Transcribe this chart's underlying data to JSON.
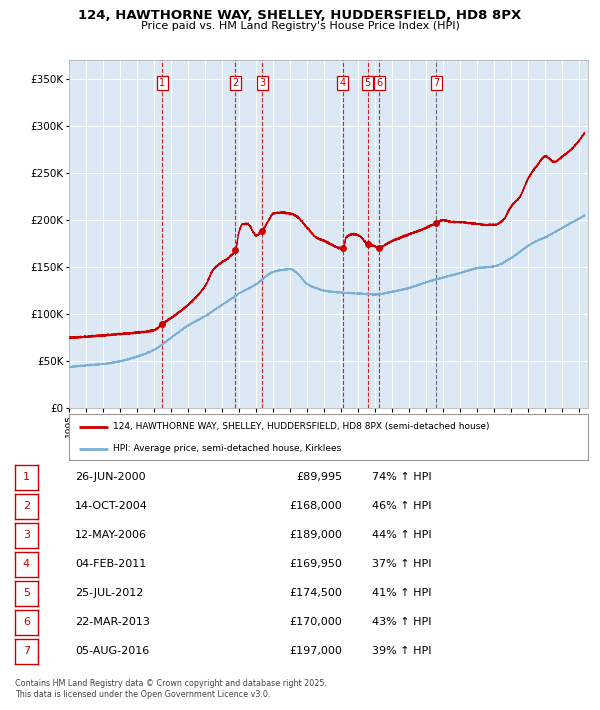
{
  "title": "124, HAWTHORNE WAY, SHELLEY, HUDDERSFIELD, HD8 8PX",
  "subtitle": "Price paid vs. HM Land Registry's House Price Index (HPI)",
  "red_label": "124, HAWTHORNE WAY, SHELLEY, HUDDERSFIELD, HD8 8PX (semi-detached house)",
  "blue_label": "HPI: Average price, semi-detached house, Kirklees",
  "footer1": "Contains HM Land Registry data © Crown copyright and database right 2025.",
  "footer2": "This data is licensed under the Open Government Licence v3.0.",
  "transactions": [
    {
      "num": 1,
      "date": "26-JUN-2000",
      "year": 2000.49,
      "price": 89995,
      "price_str": "£89,995",
      "pct": "74% ↑ HPI"
    },
    {
      "num": 2,
      "date": "14-OCT-2004",
      "year": 2004.78,
      "price": 168000,
      "price_str": "£168,000",
      "pct": "46% ↑ HPI"
    },
    {
      "num": 3,
      "date": "12-MAY-2006",
      "year": 2006.36,
      "price": 189000,
      "price_str": "£189,000",
      "pct": "44% ↑ HPI"
    },
    {
      "num": 4,
      "date": "04-FEB-2011",
      "year": 2011.09,
      "price": 169950,
      "price_str": "£169,950",
      "pct": "37% ↑ HPI"
    },
    {
      "num": 5,
      "date": "25-JUL-2012",
      "year": 2012.56,
      "price": 174500,
      "price_str": "£174,500",
      "pct": "41% ↑ HPI"
    },
    {
      "num": 6,
      "date": "22-MAR-2013",
      "year": 2013.22,
      "price": 170000,
      "price_str": "£170,000",
      "pct": "43% ↑ HPI"
    },
    {
      "num": 7,
      "date": "05-AUG-2016",
      "year": 2016.59,
      "price": 197000,
      "price_str": "£197,000",
      "pct": "39% ↑ HPI"
    }
  ],
  "ylim": [
    0,
    370000
  ],
  "xlim_start": 1995.0,
  "xlim_end": 2025.5,
  "background_color": "#dce9f5",
  "red_color": "#cc0000",
  "blue_color": "#7bafd4",
  "grid_color": "#ffffff",
  "box_color": "#cc0000",
  "vline_colors": [
    1,
    1,
    1,
    1,
    1,
    1,
    0
  ],
  "yticks": [
    0,
    50000,
    100000,
    150000,
    200000,
    250000,
    300000,
    350000
  ],
  "ytick_labels": [
    "£0",
    "£50K",
    "£100K",
    "£150K",
    "£200K",
    "£250K",
    "£300K",
    "£350K"
  ]
}
